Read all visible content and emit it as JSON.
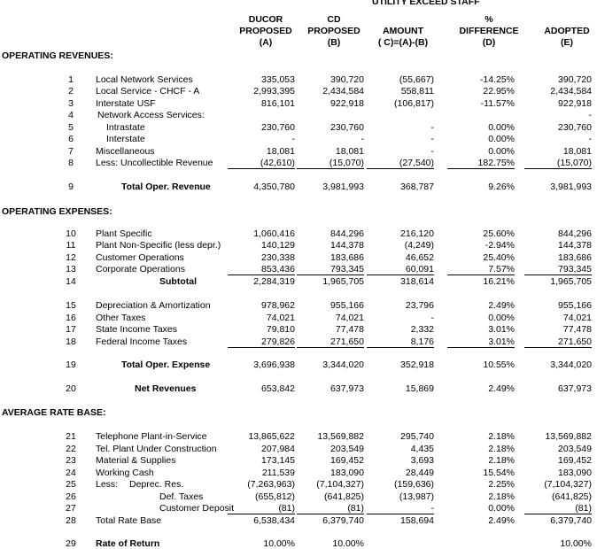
{
  "header": {
    "group_title": "UTILITY EXCEED STAFF",
    "columns": [
      [
        "DUCOR",
        "PROPOSED",
        "(A)"
      ],
      [
        "CD",
        "PROPOSED",
        "(B)"
      ],
      [
        "AMOUNT",
        "( C)=(A)-(B)"
      ],
      [
        "%",
        "DIFFERENCE",
        "(D)"
      ],
      [
        "ADOPTED",
        "(E)"
      ]
    ]
  },
  "sections": [
    {
      "title": "OPERATING REVENUES:",
      "rows": [
        {
          "num": "1",
          "label": "Local Network Services",
          "values": [
            "335,053",
            "390,720",
            "(55,667)",
            "-14.25%",
            "390,720"
          ]
        },
        {
          "num": "2",
          "label": "Local Service - CHCF - A",
          "values": [
            "2,993,395",
            "2,434,584",
            "558,811",
            "22.95%",
            "2,434,584"
          ]
        },
        {
          "num": "3",
          "label": "Interstate USF",
          "values": [
            "816,101",
            "922,918",
            "(106,817)",
            "-11.57%",
            "922,918"
          ]
        },
        {
          "num": "4",
          "label": "Network Access Services:",
          "values": [
            null,
            null,
            null,
            null,
            "-"
          ]
        },
        {
          "num": "5",
          "label": "Intrastate",
          "values": [
            "230,760",
            "230,760",
            "-",
            "0.00%",
            "230,760"
          ]
        },
        {
          "num": "6",
          "label": "Interstate",
          "values": [
            "-",
            "-",
            "-",
            "0.00%",
            "-"
          ]
        },
        {
          "num": "7",
          "label": "Miscellaneous",
          "values": [
            "18,081",
            "18,081",
            "-",
            "0.00%",
            "18,081"
          ]
        },
        {
          "num": "8",
          "label": "Less: Uncollectible Revenue",
          "values": [
            "(42,610)",
            "(15,070)",
            "(27,540)",
            "182.75%",
            "(15,070)"
          ]
        },
        {
          "num": "9",
          "label": "Total Oper. Revenue",
          "values": [
            "4,350,780",
            "3,981,993",
            "368,787",
            "9.26%",
            "3,981,993"
          ]
        }
      ]
    },
    {
      "title": "OPERATING EXPENSES:",
      "rows": [
        {
          "num": "10",
          "label": "Plant Specific",
          "values": [
            "1,060,416",
            "844,296",
            "216,120",
            "25.60%",
            "844,296"
          ]
        },
        {
          "num": "11",
          "label": "Plant Non-Specific (less depr.)",
          "values": [
            "140,129",
            "144,378",
            "(4,249)",
            "-2.94%",
            "144,378"
          ]
        },
        {
          "num": "12",
          "label": "Customer Operations",
          "values": [
            "230,338",
            "183,686",
            "46,652",
            "25.40%",
            "183,686"
          ]
        },
        {
          "num": "13",
          "label": "Corporate Operations",
          "values": [
            "853,436",
            "793,345",
            "60,091",
            "7.57%",
            "793,345"
          ]
        },
        {
          "num": "14",
          "label": "Subtotal",
          "values": [
            "2,284,319",
            "1,965,705",
            "318,614",
            "16.21%",
            "1,965,705"
          ]
        },
        {
          "num": "15",
          "label": "Depreciation & Amortization",
          "values": [
            "978,962",
            "955,166",
            "23,796",
            "2.49%",
            "955,166"
          ]
        },
        {
          "num": "16",
          "label": "Other Taxes",
          "values": [
            "74,021",
            "74,021",
            "-",
            "0.00%",
            "74,021"
          ]
        },
        {
          "num": "17",
          "label": "State Income Taxes",
          "values": [
            "79,810",
            "77,478",
            "2,332",
            "3.01%",
            "77,478"
          ]
        },
        {
          "num": "18",
          "label": "Federal Income Taxes",
          "values": [
            "279,826",
            "271,650",
            "8,176",
            "3.01%",
            "271,650"
          ]
        },
        {
          "num": "19",
          "label": "Total Oper. Expense",
          "values": [
            "3,696,938",
            "3,344,020",
            "352,918",
            "10.55%",
            "3,344,020"
          ]
        },
        {
          "num": "20",
          "label": "Net Revenues",
          "values": [
            "653,842",
            "637,973",
            "15,869",
            "2.49%",
            "637,973"
          ]
        }
      ]
    },
    {
      "title": "AVERAGE RATE BASE:",
      "rows": [
        {
          "num": "21",
          "label": "Telephone Plant-in-Service",
          "values": [
            "13,865,622",
            "13,569,882",
            "295,740",
            "2.18%",
            "13,569,882"
          ]
        },
        {
          "num": "22",
          "label": "Tel. Plant Under Construction",
          "values": [
            "207,984",
            "203,549",
            "4,435",
            "2.18%",
            "203,549"
          ]
        },
        {
          "num": "23",
          "label": "Material & Supplies",
          "values": [
            "173,145",
            "169,452",
            "3,693",
            "2.18%",
            "169,452"
          ]
        },
        {
          "num": "24",
          "label": "Working Cash",
          "values": [
            "211,539",
            "183,090",
            "28,449",
            "15.54%",
            "183,090"
          ]
        },
        {
          "num": "25",
          "label": "Less:",
          "sublabel": "Deprec. Res.",
          "values": [
            "(7,263,963)",
            "(7,104,327)",
            "(159,636)",
            "2.25%",
            "(7,104,327)"
          ]
        },
        {
          "num": "26",
          "label": "Def. Taxes",
          "values": [
            "(655,812)",
            "(641,825)",
            "(13,987)",
            "2.18%",
            "(641,825)"
          ]
        },
        {
          "num": "27",
          "label": "Customer Deposit",
          "values": [
            "(81)",
            "(81)",
            "-",
            "0.00%",
            "(81)"
          ]
        },
        {
          "num": "28",
          "label": "Total Rate Base",
          "values": [
            "6,538,434",
            "6,379,740",
            "158,694",
            "2.49%",
            "6,379,740"
          ]
        },
        {
          "num": "29",
          "label": "Rate of Return",
          "values": [
            "10.00%",
            "10.00%",
            null,
            null,
            "10.00%"
          ]
        }
      ]
    }
  ]
}
